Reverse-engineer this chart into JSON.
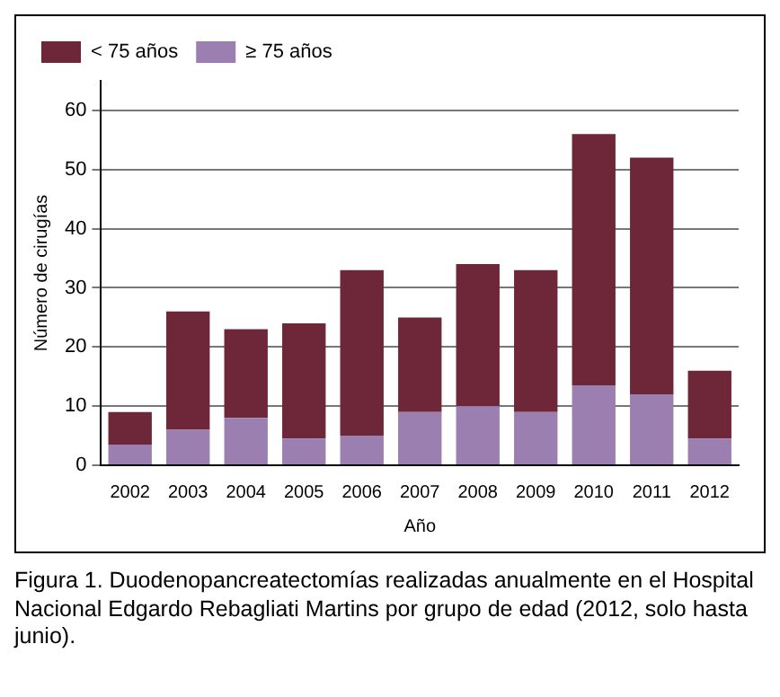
{
  "chart_data": {
    "type": "bar",
    "stacked": true,
    "xlabel": "Año",
    "ylabel": "Número de cirugías",
    "categories": [
      "2002",
      "2003",
      "2004",
      "2005",
      "2006",
      "2007",
      "2008",
      "2009",
      "2010",
      "2011",
      "2012"
    ],
    "series": [
      {
        "name": "≥ 75 años",
        "color": "#9b7fb0",
        "values": [
          3.5,
          6,
          8,
          4.5,
          5,
          9,
          10,
          9,
          13.5,
          12,
          4.5
        ]
      },
      {
        "name": "< 75 años",
        "color": "#6e2639",
        "values": [
          5.5,
          20,
          15,
          19.5,
          28,
          16,
          24,
          24,
          42.5,
          40,
          11.5
        ]
      }
    ],
    "ylim": [
      0,
      65
    ],
    "yticks": [
      0,
      10,
      20,
      30,
      40,
      50,
      60
    ],
    "grid": "y",
    "legend": "top",
    "annotations": [
      "Figura 1. Duodenopancreatectomías realizadas anualmente en el Hospital Nacional Edgardo Rebagliati Martins por grupo de edad (2012, solo hasta junio)."
    ]
  }
}
